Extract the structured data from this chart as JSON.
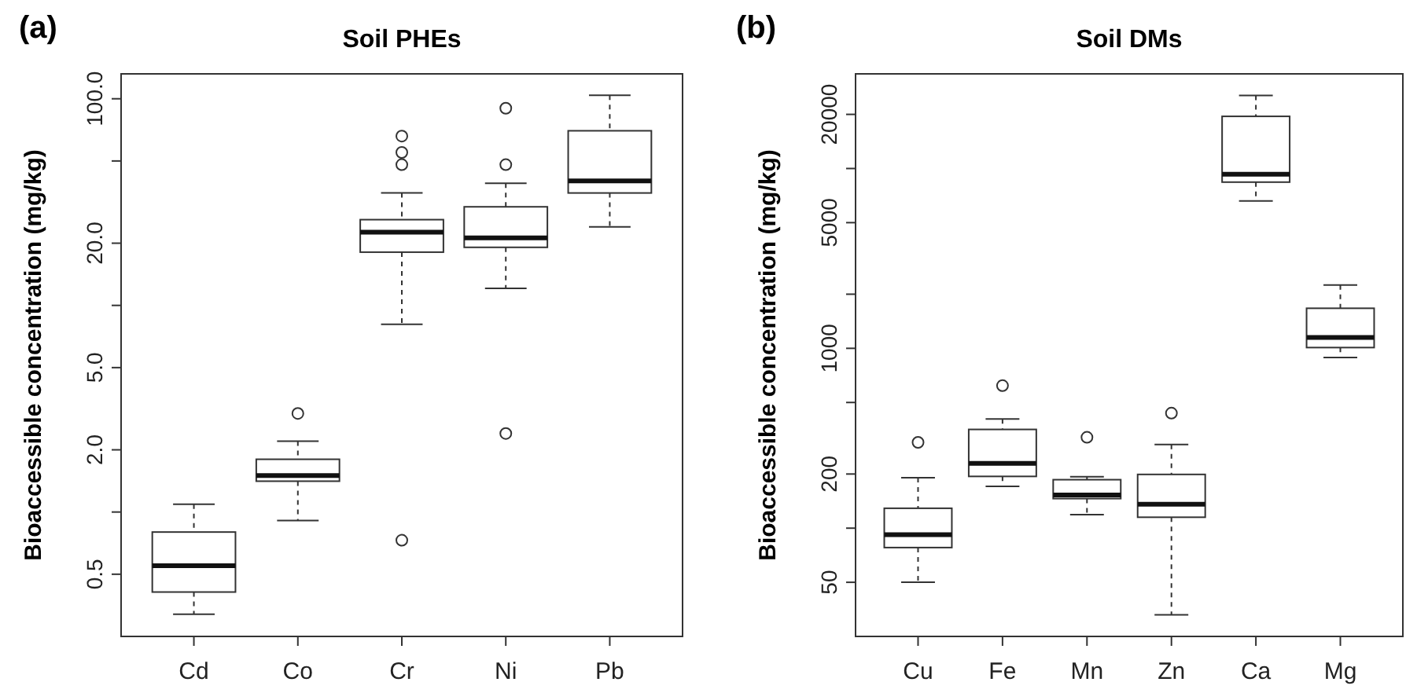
{
  "chart_data": [
    {
      "type": "box",
      "title": "Soil PHEs",
      "ylabel": "Bioaccessible concentration (mg/kg)",
      "annotations": [
        "(a)"
      ],
      "log": true,
      "categories": [
        "Cd",
        "Co",
        "Cr",
        "Ni",
        "Pb"
      ],
      "boxes": [
        {
          "low": 0.32,
          "q1": 0.41,
          "median": 0.55,
          "q3": 0.8,
          "high": 1.09
        },
        {
          "low": 0.91,
          "q1": 1.41,
          "median": 1.5,
          "q3": 1.8,
          "high": 2.2,
          "outliers": [
            3.0
          ]
        },
        {
          "low": 8.1,
          "q1": 18.1,
          "median": 22.6,
          "q3": 26,
          "high": 35,
          "outliers": [
            66,
            55,
            48,
            0.73
          ]
        },
        {
          "low": 12.1,
          "q1": 19.1,
          "median": 21.2,
          "q3": 30,
          "high": 39,
          "outliers": [
            90,
            48,
            2.4
          ]
        },
        {
          "low": 24,
          "q1": 35,
          "median": 40,
          "q3": 70,
          "high": 104
        }
      ],
      "ylim": [
        0.25,
        132
      ],
      "yticks": [
        {
          "value": 0.5,
          "label": "0.5"
        },
        {
          "value": 1,
          "label": null
        },
        {
          "value": 2,
          "label": "2.0"
        },
        {
          "value": 5,
          "label": "5.0"
        },
        {
          "value": 10,
          "label": null
        },
        {
          "value": 20,
          "label": "20.0"
        },
        {
          "value": 50,
          "label": null
        },
        {
          "value": 100,
          "label": "100.0"
        }
      ]
    },
    {
      "type": "box",
      "title": "Soil DMs",
      "ylabel": "Bioaccessible concentration (mg/kg)",
      "annotations": [
        "(b)"
      ],
      "log": true,
      "categories": [
        "Cu",
        "Fe",
        "Mn",
        "Zn",
        "Ca",
        "Mg"
      ],
      "boxes": [
        {
          "low": 50,
          "q1": 78,
          "median": 92,
          "q3": 129,
          "high": 191,
          "outliers": [
            300
          ]
        },
        {
          "low": 171,
          "q1": 194,
          "median": 229,
          "q3": 354,
          "high": 405,
          "outliers": [
            620
          ]
        },
        {
          "low": 119,
          "q1": 146,
          "median": 153,
          "q3": 186,
          "high": 193,
          "outliers": [
            320
          ]
        },
        {
          "low": 33,
          "q1": 115,
          "median": 136,
          "q3": 199,
          "high": 292,
          "outliers": [
            436
          ]
        },
        {
          "low": 6600,
          "q1": 8400,
          "median": 9300,
          "q3": 19500,
          "high": 25500
        },
        {
          "low": 890,
          "q1": 1010,
          "median": 1150,
          "q3": 1670,
          "high": 2250
        }
      ],
      "ylim": [
        25,
        33600
      ],
      "yticks": [
        {
          "value": 50,
          "label": "50"
        },
        {
          "value": 100,
          "label": null
        },
        {
          "value": 200,
          "label": "200"
        },
        {
          "value": 500,
          "label": null
        },
        {
          "value": 1000,
          "label": "1000"
        },
        {
          "value": 2000,
          "label": null
        },
        {
          "value": 5000,
          "label": "5000"
        },
        {
          "value": 10000,
          "label": null
        },
        {
          "value": 20000,
          "label": "20000"
        }
      ]
    }
  ]
}
